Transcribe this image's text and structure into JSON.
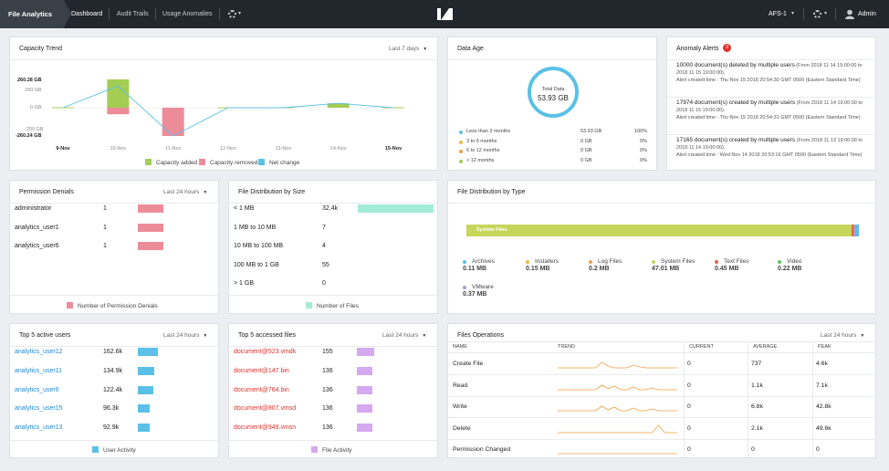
{
  "topbar": {
    "brand": "File Analytics",
    "nav": [
      "Dashboard",
      "Audit Trails",
      "Usage Anomalies"
    ],
    "cluster": "AFS-1",
    "user": "Admin"
  },
  "capacity": {
    "title": "Capacity Trend",
    "range": "Last 7 days",
    "y_top": "260.28 GB",
    "y_up": "200 GB",
    "y_zero": "0 GB",
    "y_down": "-200 GB",
    "y_bottom": "-260.24 GB",
    "x_labels": [
      "9-Nov",
      "10-Nov",
      "11-Nov",
      "12-Nov",
      "13-Nov",
      "14-Nov",
      "15-Nov"
    ],
    "legend": [
      "Capacity added",
      "Capacity removed",
      "Net change"
    ]
  },
  "chart_data": {
    "type": "bar",
    "categories": [
      "9-Nov",
      "10-Nov",
      "11-Nov",
      "12-Nov",
      "13-Nov",
      "14-Nov",
      "15-Nov"
    ],
    "series": [
      {
        "name": "Capacity added",
        "values": [
          0,
          260.28,
          0,
          0,
          0,
          40,
          0
        ]
      },
      {
        "name": "Capacity removed",
        "values": [
          0,
          -60,
          -260.24,
          0,
          0,
          0,
          0
        ]
      },
      {
        "name": "Net change",
        "values": [
          0,
          200,
          -260.24,
          0,
          0,
          40,
          0
        ]
      }
    ],
    "ylim": [
      -260.24,
      260.28
    ],
    "colors": {
      "added": "#a4cd53",
      "removed": "#ec8c99",
      "net": "#5bc0e6"
    }
  },
  "data_age": {
    "title": "Data Age",
    "center_label": "Total Data",
    "center_value": "53.93 GB",
    "rows": [
      {
        "label": "Less than 3 months",
        "size": "53.93 GB",
        "pct": "100%",
        "color": "#5bc0e6"
      },
      {
        "label": "3 to 6 months",
        "size": "0 GB",
        "pct": "0%",
        "color": "#e8b94a"
      },
      {
        "label": "6 to 12 months",
        "size": "0 GB",
        "pct": "0%",
        "color": "#f0a040"
      },
      {
        "label": "> 12 months",
        "size": "0 GB",
        "pct": "0%",
        "color": "#a4cd53"
      }
    ]
  },
  "alerts": {
    "title": "Anomaly Alerts",
    "count": "3",
    "items": [
      {
        "text": "10000 document(s) deleted by multiple users",
        "range": " (From 2018 11 14 19:00:00 to 2018 11 15 19:00:00).",
        "created": "Alert created time : Thu Nov 15 2018 20:54:30 GMT 0500 (Eastern Standard Time)"
      },
      {
        "text": "17974 document(s) created by multiple users",
        "range": " (From 2018 11 14 19:00:00 to 2018 11 15 19:00:00).",
        "created": "Alert created time : Thu Nov 15 2018 20:54:31 GMT 0500 (Eastern Standard Time)"
      },
      {
        "text": "17165 document(s) created by multiple users",
        "range": " (From 2018 11 13 19:00:00 to 2018 11 14 19:00:00).",
        "created": "Alert created time : Wed Nov 14 2018 20:53:16 GMT 0500 (Eastern Standard Time)"
      }
    ]
  },
  "permission": {
    "title": "Permission Denials",
    "range": "Last 24 hours",
    "rows": [
      {
        "user": "administrator",
        "count": "1",
        "frac": 1
      },
      {
        "user": "analytics_user1",
        "count": "1",
        "frac": 1
      },
      {
        "user": "analytics_user6",
        "count": "1",
        "frac": 1
      }
    ],
    "legend": "Number of Permission Denials",
    "color": "#ec8c99"
  },
  "size_dist": {
    "title": "File Distribution by Size",
    "rows": [
      {
        "label": "< 1 MB",
        "count": "32.4k",
        "frac": 1
      },
      {
        "label": "1 MB to 10 MB",
        "count": "7",
        "frac": 0
      },
      {
        "label": "10 MB to 100 MB",
        "count": "4",
        "frac": 0
      },
      {
        "label": "100 MB to 1 GB",
        "count": "55",
        "frac": 0
      },
      {
        "label": "> 1 GB",
        "count": "0",
        "frac": 0
      }
    ],
    "legend": "Number of Files",
    "color": "#a2ecd6"
  },
  "type_dist": {
    "title": "File Distribution by Type",
    "bar_label": "System Files",
    "items": [
      {
        "name": "Archives",
        "size": "0.11 MB",
        "color": "#5bc0e6"
      },
      {
        "name": "Installers",
        "size": "0.15 MB",
        "color": "#e8b94a"
      },
      {
        "name": "Log Files",
        "size": "0.2 MB",
        "color": "#f0a040"
      },
      {
        "name": "System Files",
        "size": "47.01 MB",
        "color": "#c4d75a"
      },
      {
        "name": "Text Files",
        "size": "0.45 MB",
        "color": "#e8604a"
      },
      {
        "name": "Video",
        "size": "0.22 MB",
        "color": "#62c462"
      },
      {
        "name": "VMware",
        "size": "0.37 MB",
        "color": "#a89ac8"
      }
    ]
  },
  "active_users": {
    "title": "Top 5 active users",
    "range": "Last 24 hours",
    "rows": [
      {
        "name": "analytics_user12",
        "value": "162.6k",
        "frac": 1
      },
      {
        "name": "analytics_user11",
        "value": "134.9k",
        "frac": 0.83
      },
      {
        "name": "analytics_user6",
        "value": "122.4k",
        "frac": 0.75
      },
      {
        "name": "analytics_user15",
        "value": "96.3k",
        "frac": 0.59
      },
      {
        "name": "analytics_user13",
        "value": "92.9k",
        "frac": 0.57
      }
    ],
    "legend": "User Activity",
    "color": "#5bc0e6"
  },
  "accessed_files": {
    "title": "Top 5 accessed files",
    "range": "Last 24 hours",
    "rows": [
      {
        "name": "document@523.vmdk",
        "value": "155",
        "frac": 1
      },
      {
        "name": "document@147.bin",
        "value": "136",
        "frac": 0.88
      },
      {
        "name": "document@764.bin",
        "value": "136",
        "frac": 0.88
      },
      {
        "name": "document@807.vmsd",
        "value": "136",
        "frac": 0.88
      },
      {
        "name": "document@949.vmsn",
        "value": "136",
        "frac": 0.88
      }
    ],
    "legend": "File Activity",
    "color": "#d6a8ef"
  },
  "file_ops": {
    "title": "Files Operations",
    "range": "Last 24 hours",
    "headers": [
      "NAME",
      "TREND",
      "CURRENT",
      "AVERAGE",
      "PEAK"
    ],
    "rows": [
      {
        "name": "Create File",
        "current": "0",
        "average": "737",
        "peak": "4.6k"
      },
      {
        "name": "Read",
        "current": "0",
        "average": "1.1k",
        "peak": "7.1k"
      },
      {
        "name": "Write",
        "current": "0",
        "average": "6.8k",
        "peak": "42.8k"
      },
      {
        "name": "Delete",
        "current": "0",
        "average": "2.1k",
        "peak": "49.6k"
      },
      {
        "name": "Permission Changed",
        "current": "0",
        "average": "0",
        "peak": "0"
      }
    ],
    "trend_color": "#f0a040"
  }
}
